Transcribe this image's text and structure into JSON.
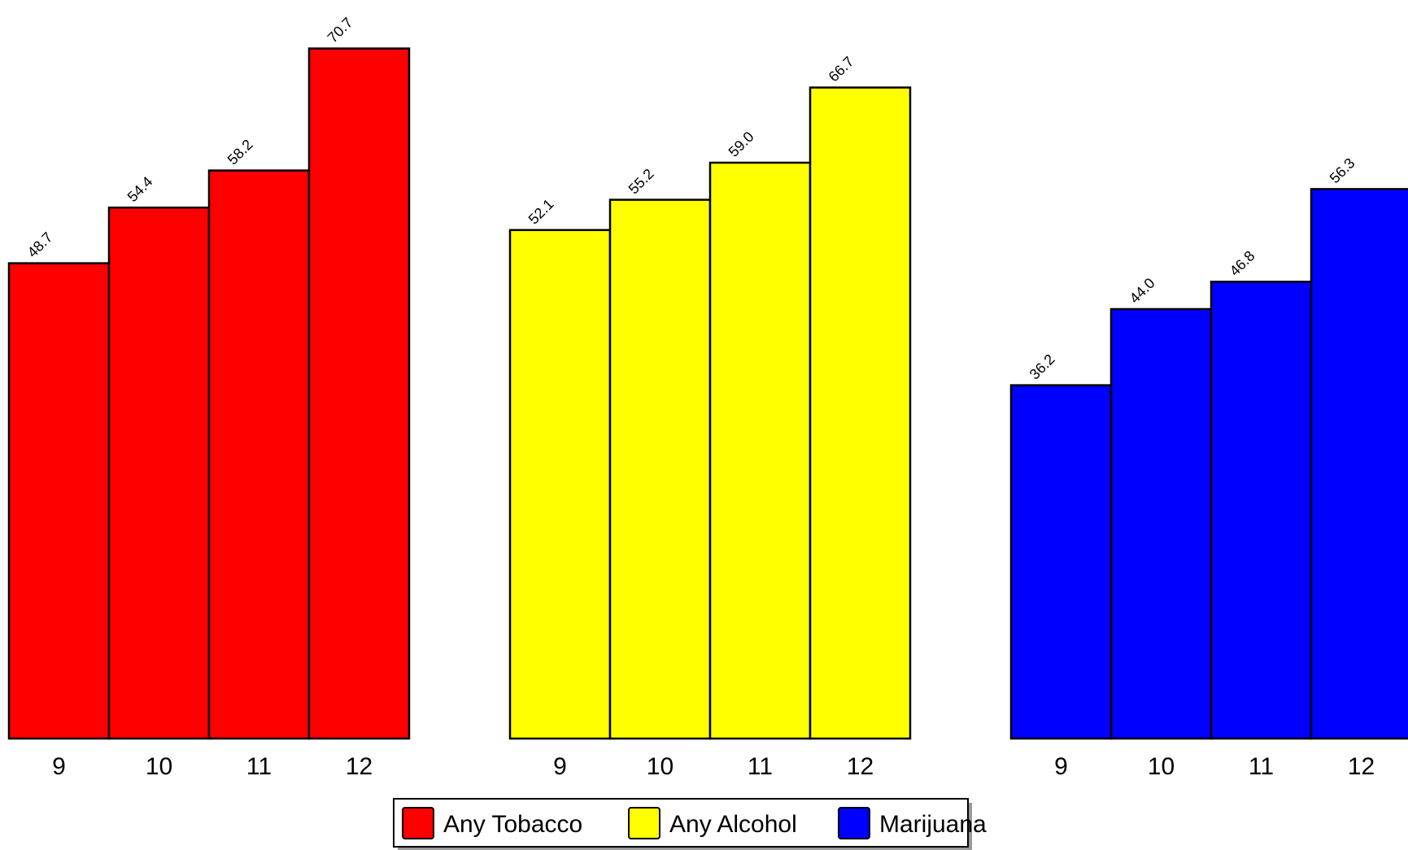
{
  "chart_data": {
    "type": "bar",
    "categories": [
      "9",
      "10",
      "11",
      "12"
    ],
    "series": [
      {
        "name": "Any Tobacco",
        "color": "#ff0000",
        "values": [
          48.7,
          54.4,
          58.2,
          70.7
        ],
        "labels": [
          "48.7",
          "54.4",
          "58.2",
          "70.7"
        ]
      },
      {
        "name": "Any Alcohol",
        "color": "#ffff00",
        "values": [
          52.1,
          55.2,
          59.0,
          66.7
        ],
        "labels": [
          "52.1",
          "55.2",
          "59.0",
          "66.7"
        ]
      },
      {
        "name": "Marijuana",
        "color": "#0000ff",
        "values": [
          36.2,
          44.0,
          46.8,
          56.3
        ],
        "labels": [
          "36.2",
          "44.0",
          "46.8",
          "56.3"
        ]
      }
    ],
    "title": "",
    "xlabel": "",
    "ylabel": "",
    "ylim": [
      0,
      72
    ],
    "grid": false,
    "legend": "bottom-center"
  }
}
